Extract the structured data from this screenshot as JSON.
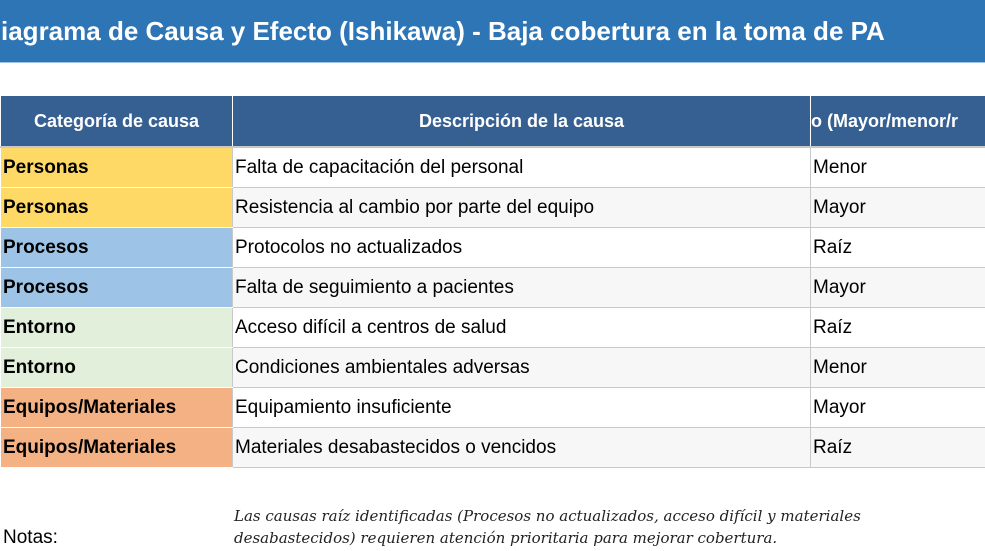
{
  "title": "iagrama de Causa y Efecto (Ishikawa) - Baja cobertura en la toma de PA",
  "colors": {
    "title_bg": "#2E75B6",
    "header_bg": "#366092",
    "Personas": "#FFD966",
    "Procesos": "#9DC3E6",
    "Entorno": "#E2EFDA",
    "Equipos/Materiales": "#F4B183"
  },
  "table": {
    "headers": [
      "Categoría de causa",
      "Descripción de la causa",
      "o (Mayor/menor/r"
    ],
    "rows": [
      {
        "category": "Personas",
        "description": "Falta de capacitación del personal",
        "type": "Menor"
      },
      {
        "category": "Personas",
        "description": "Resistencia al cambio por parte del equipo",
        "type": "Mayor"
      },
      {
        "category": "Procesos",
        "description": "Protocolos no actualizados",
        "type": "Raíz"
      },
      {
        "category": "Procesos",
        "description": "Falta de seguimiento a pacientes",
        "type": "Mayor"
      },
      {
        "category": "Entorno",
        "description": "Acceso difícil a centros de salud",
        "type": "Raíz"
      },
      {
        "category": "Entorno",
        "description": "Condiciones ambientales adversas",
        "type": "Menor"
      },
      {
        "category": "Equipos/Materiales",
        "description": "Equipamiento insuficiente",
        "type": "Mayor"
      },
      {
        "category": "Equipos/Materiales",
        "description": "Materiales desabastecidos o vencidos",
        "type": "Raíz"
      }
    ]
  },
  "notes": {
    "label": "Notas:",
    "text": "Las causas raíz identificadas (Procesos no actualizados, acceso difícil y materiales desabastecidos) requieren atención prioritaria para mejorar cobertura."
  }
}
